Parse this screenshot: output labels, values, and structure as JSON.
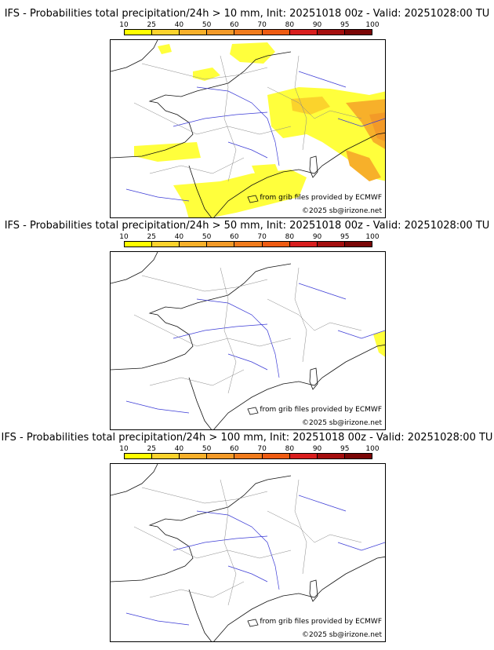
{
  "colorbar": {
    "ticks": [
      "10",
      "25",
      "40",
      "50",
      "60",
      "70",
      "80",
      "90",
      "95",
      "100"
    ],
    "colors": [
      "#ffff00",
      "#fbd32c",
      "#f7b02a",
      "#f39a28",
      "#f07b1c",
      "#ee5b12",
      "#d81e1e",
      "#a40e0e",
      "#7a0606"
    ]
  },
  "credits": {
    "source": "from grib files provided by ECMWF",
    "copyright": "©2025 sb@irizone.net"
  },
  "panels": [
    {
      "title": "IFS - Probabilities total precipitation/24h > 10 mm, Init: 20251018 00z - Valid: 20251028:00 TU"
    },
    {
      "title": "IFS - Probabilities total precipitation/24h > 50 mm, Init: 20251018 00z - Valid: 20251028:00 TU"
    },
    {
      "title": "IFS - Probabilities total precipitation/24h > 100 mm, Init: 20251018 00z - Valid: 20251028:00 TU"
    }
  ]
}
